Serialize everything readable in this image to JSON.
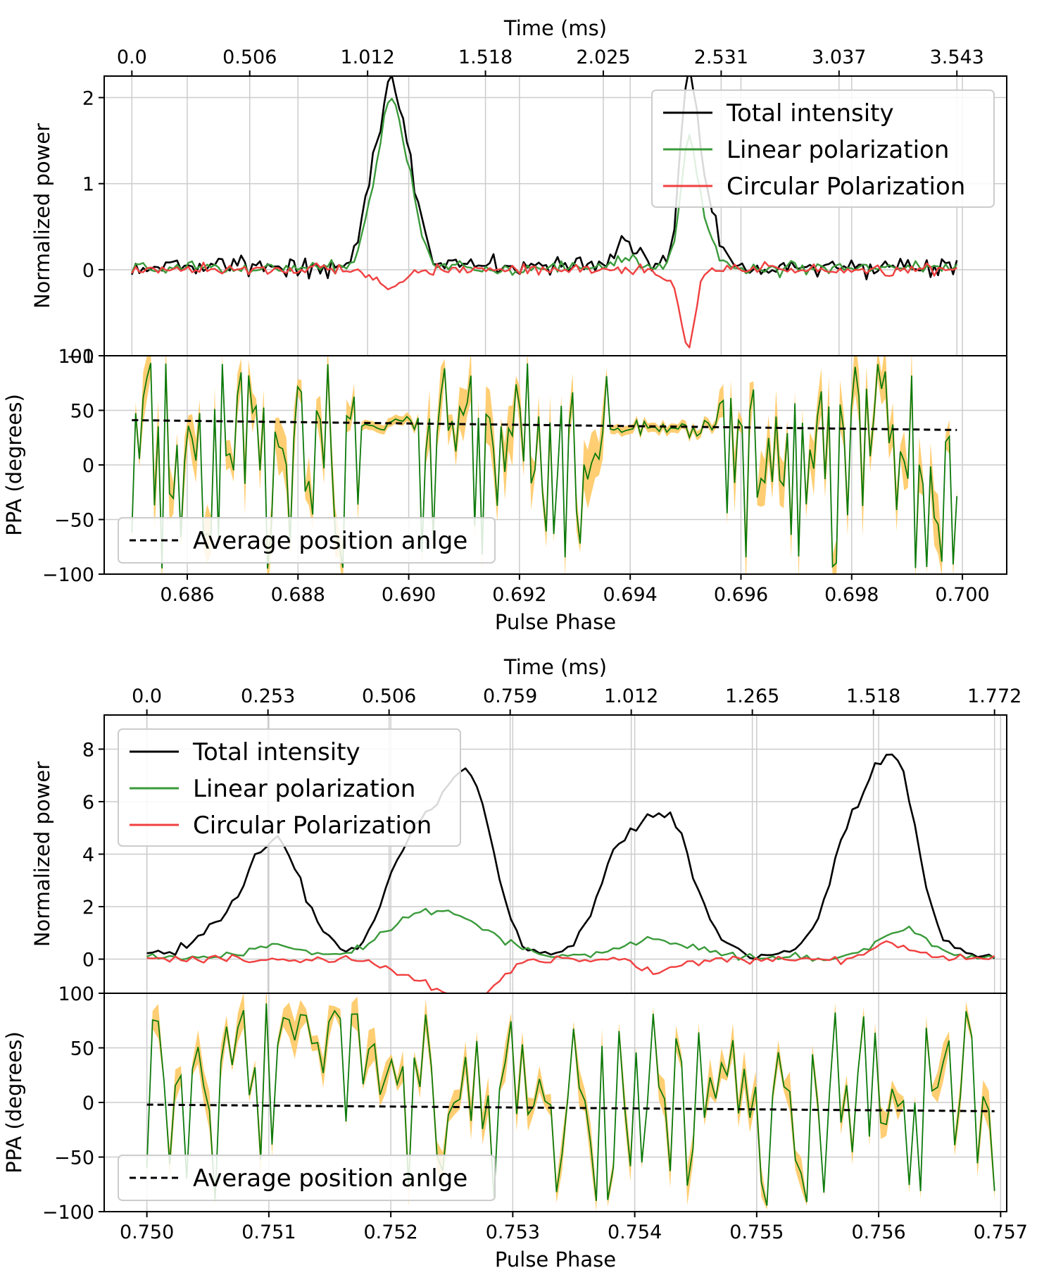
{
  "colors": {
    "total": "#000000",
    "linear": "#3a9a3a",
    "circular": "#f04040",
    "ppa": "#0b7a0b",
    "band": "#ffc55a",
    "grid": "#cccccc"
  },
  "chart_data": [
    {
      "type": "line",
      "id": "top",
      "title": "",
      "top_axis_label": "Time (ms)",
      "top_ticks": [
        "0.0",
        "0.506",
        "1.012",
        "1.518",
        "2.025",
        "2.531",
        "3.037",
        "3.543"
      ],
      "xlabel": "Pulse Phase",
      "xlim": [
        0.6845,
        0.7008
      ],
      "x_ticks": [
        0.686,
        0.688,
        0.69,
        0.692,
        0.694,
        0.696,
        0.698,
        0.7
      ],
      "x_tick_labels": [
        "0.686",
        "0.688",
        "0.690",
        "0.692",
        "0.694",
        "0.696",
        "0.698",
        "0.700"
      ],
      "x_range": [
        0.685,
        0.6999
      ],
      "intensity": {
        "ylabel": "Normalized power",
        "ylim": [
          -1,
          2.25
        ],
        "y_ticks": [
          -1,
          0,
          1,
          2
        ],
        "y_tick_labels": [
          "−1",
          "0",
          "1",
          "2"
        ],
        "legend_position": "top-right",
        "series": [
          {
            "name": "Total intensity",
            "key": "total",
            "baseline": 0.04,
            "noise": 0.12,
            "peaks": [
              [
                0.68965,
                0.00018,
                1.85
              ],
              [
                0.68998,
                0.0002,
                1.05
              ],
              [
                0.6893,
                0.00015,
                0.8
              ],
              [
                0.69395,
                0.0002,
                0.3
              ],
              [
                0.69505,
                0.00015,
                2.05
              ],
              [
                0.69535,
                0.0002,
                0.75
              ]
            ]
          },
          {
            "name": "Linear polarization",
            "key": "linear",
            "baseline": 0.02,
            "noise": 0.07,
            "peaks": [
              [
                0.68965,
                0.00018,
                1.7
              ],
              [
                0.68998,
                0.0002,
                0.92
              ],
              [
                0.6893,
                0.00015,
                0.55
              ],
              [
                0.69395,
                0.0002,
                0.1
              ],
              [
                0.69505,
                0.00015,
                1.35
              ],
              [
                0.69535,
                0.0002,
                0.4
              ]
            ]
          },
          {
            "name": "Circular Polarization",
            "key": "circular",
            "baseline": 0.0,
            "noise": 0.06,
            "peaks": [
              [
                0.68965,
                0.00025,
                -0.22
              ],
              [
                0.69505,
                0.00012,
                -0.85
              ],
              [
                0.6948,
                0.0002,
                -0.15
              ]
            ]
          }
        ]
      },
      "ppa": {
        "ylabel": "PPA (degrees)",
        "ylim": [
          -100,
          100
        ],
        "y_ticks": [
          -100,
          -50,
          0,
          50,
          100
        ],
        "y_tick_labels": [
          "−100",
          "−50",
          "0",
          "50",
          "100"
        ],
        "legend_position": "bottom-left",
        "legend_label": "Average position anlge",
        "average_line": [
          [
            0.685,
            41
          ],
          [
            0.6999,
            32
          ]
        ],
        "stable_ranges": [
          [
            0.6891,
            0.6902,
            37,
            4
          ],
          [
            0.6936,
            0.6956,
            33,
            4
          ]
        ],
        "noisy_sd": 55,
        "band_min": 6,
        "band_max": 28
      }
    },
    {
      "type": "line",
      "id": "bottom",
      "title": "",
      "top_axis_label": "Time (ms)",
      "top_ticks": [
        "0.0",
        "0.253",
        "0.506",
        "0.759",
        "1.012",
        "1.265",
        "1.518",
        "1.772"
      ],
      "xlabel": "Pulse Phase",
      "xlim": [
        0.74965,
        0.75705
      ],
      "x_ticks": [
        0.75,
        0.751,
        0.752,
        0.753,
        0.754,
        0.755,
        0.756,
        0.757
      ],
      "x_tick_labels": [
        "0.750",
        "0.751",
        "0.752",
        "0.753",
        "0.754",
        "0.755",
        "0.756",
        "0.757"
      ],
      "x_range": [
        0.75,
        0.75695
      ],
      "intensity": {
        "ylabel": "Normalized power",
        "ylim": [
          -1.3,
          9.3
        ],
        "y_ticks": [
          0,
          2,
          4,
          6,
          8
        ],
        "y_tick_labels": [
          "0",
          "2",
          "4",
          "6",
          "8"
        ],
        "legend_position": "top-left",
        "series": [
          {
            "name": "Total intensity",
            "key": "total",
            "baseline": 0.15,
            "noise": 0.25,
            "peaks": [
              [
                0.75105,
                0.00022,
                4.3
              ],
              [
                0.7506,
                0.0002,
                0.9
              ],
              [
                0.75215,
                0.0002,
                3.8
              ],
              [
                0.7525,
                0.0002,
                3.6
              ],
              [
                0.7527,
                0.00018,
                4.2
              ],
              [
                0.7539,
                0.0002,
                3.8
              ],
              [
                0.7543,
                0.0002,
                4.6
              ],
              [
                0.7558,
                0.0002,
                4.6
              ],
              [
                0.75615,
                0.00018,
                6.6
              ]
            ]
          },
          {
            "name": "Linear polarization",
            "key": "linear",
            "baseline": 0.05,
            "noise": 0.15,
            "peaks": [
              [
                0.75105,
                0.0002,
                0.5
              ],
              [
                0.7522,
                0.0003,
                1.3
              ],
              [
                0.7526,
                0.0003,
                1.0
              ],
              [
                0.7542,
                0.0003,
                0.7
              ],
              [
                0.7562,
                0.0002,
                1.1
              ]
            ]
          },
          {
            "name": "Circular Polarization",
            "key": "circular",
            "baseline": 0.0,
            "noise": 0.15,
            "peaks": [
              [
                0.7522,
                0.0002,
                -0.6
              ],
              [
                0.7526,
                0.0002,
                -0.9
              ],
              [
                0.7527,
                0.0002,
                -0.8
              ],
              [
                0.7542,
                0.00015,
                -0.5
              ],
              [
                0.7561,
                0.00015,
                0.6
              ]
            ]
          }
        ]
      },
      "ppa": {
        "ylabel": "PPA (degrees)",
        "ylim": [
          -100,
          100
        ],
        "y_ticks": [
          -100,
          -50,
          0,
          50,
          100
        ],
        "y_tick_labels": [
          "−100",
          "−50",
          "0",
          "50",
          "100"
        ],
        "legend_position": "bottom-left",
        "legend_label": "Average position anlge",
        "average_line": [
          [
            0.75,
            -2
          ],
          [
            0.75695,
            -8
          ]
        ],
        "stable_ranges": [],
        "noisy_sd": 60,
        "band_min": 3,
        "band_max": 18
      }
    }
  ]
}
